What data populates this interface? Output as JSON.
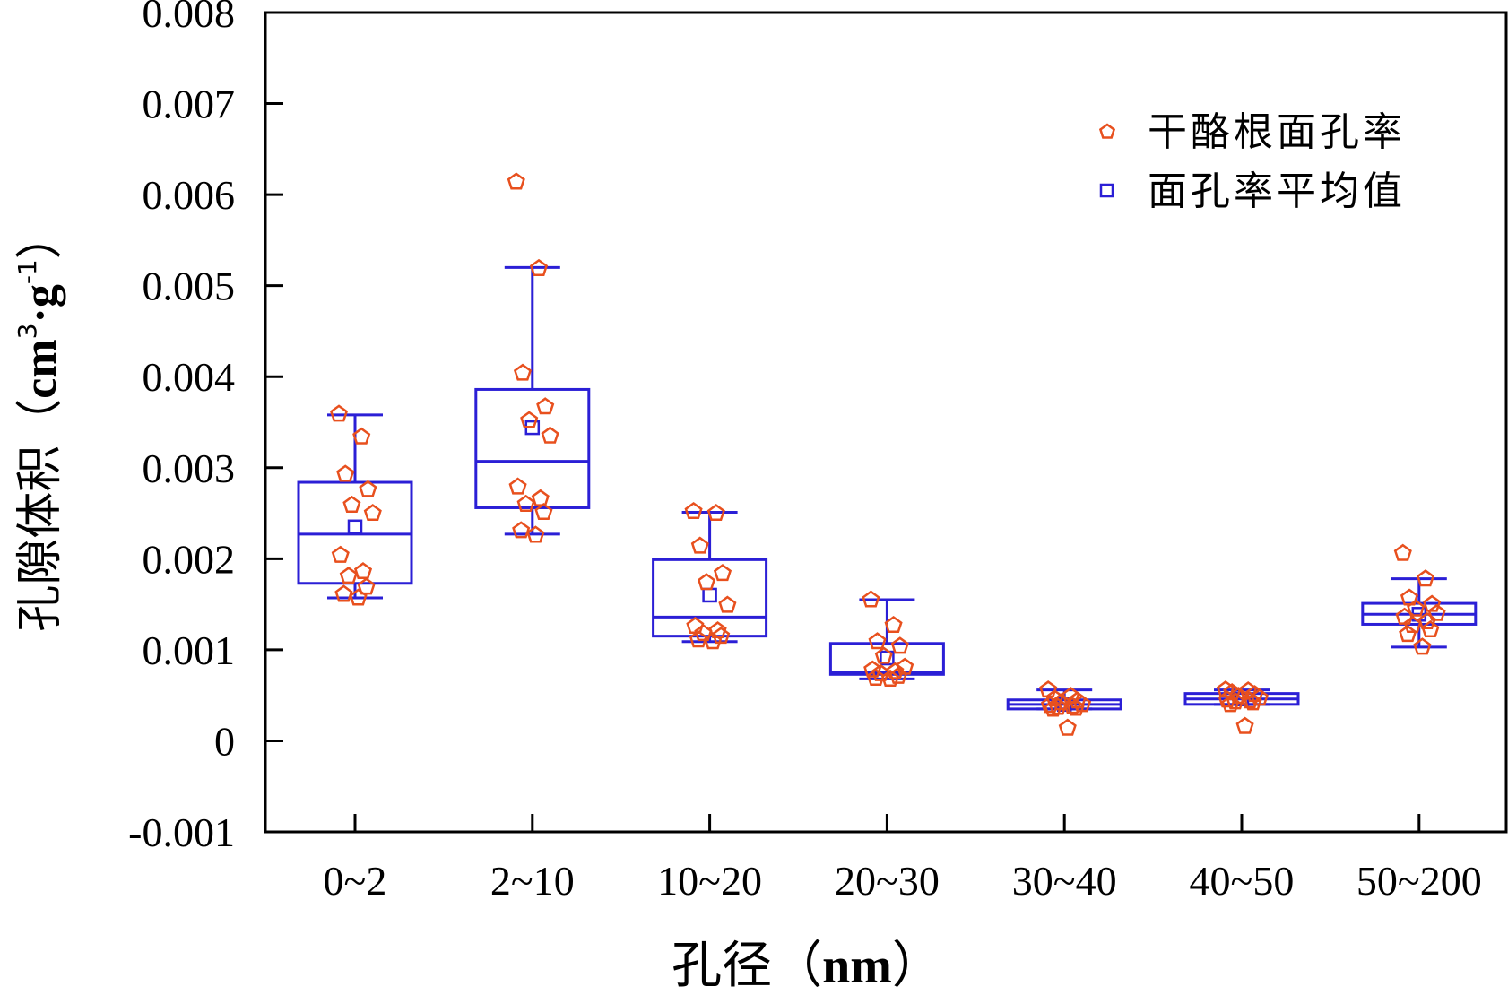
{
  "chart_data": {
    "type": "box",
    "xlabel": "孔径（nm）",
    "ylabel": "孔隙体积（cm3·g-1）",
    "ylabel_parts": {
      "open": "孔隙体积（",
      "unit1": "cm",
      "sup1": "3",
      "mid": "·g",
      "sup2": "-1",
      "close": "）"
    },
    "xlabel_parts": {
      "prefix": "孔径（",
      "unit": "nm",
      "suffix": "）"
    },
    "ylim": [
      -0.001,
      0.008
    ],
    "yticks": [
      -0.001,
      0,
      0.001,
      0.002,
      0.003,
      0.004,
      0.005,
      0.006,
      0.007,
      0.008
    ],
    "ytick_labels": [
      "-0.001",
      "0",
      "0.001",
      "0.002",
      "0.003",
      "0.004",
      "0.005",
      "0.006",
      "0.007",
      "0.008"
    ],
    "categories": [
      "0~2",
      "2~10",
      "10~20",
      "20~30",
      "30~40",
      "40~50",
      "50~200"
    ],
    "legend": {
      "position": "top-right",
      "items": [
        {
          "label": "干酪根面孔率",
          "marker": "pentagon",
          "color": "#e8501e"
        },
        {
          "label": "面孔率平均值",
          "marker": "square",
          "color": "#2b1fd6"
        }
      ]
    },
    "colors": {
      "points": "#e8501e",
      "box": "#2b1fd6",
      "axis": "#000000"
    },
    "boxes": [
      {
        "category": "0~2",
        "whisker_low": 0.00157,
        "q1": 0.00173,
        "median": 0.00227,
        "q3": 0.00284,
        "whisker_high": 0.00358,
        "mean": 0.00235
      },
      {
        "category": "2~10",
        "whisker_low": 0.00227,
        "q1": 0.00256,
        "median": 0.00307,
        "q3": 0.00386,
        "whisker_high": 0.0052,
        "mean": 0.00344
      },
      {
        "category": "10~20",
        "whisker_low": 0.00109,
        "q1": 0.00115,
        "median": 0.00136,
        "q3": 0.00199,
        "whisker_high": 0.00251,
        "mean": 0.0016
      },
      {
        "category": "20~30",
        "whisker_low": 0.00068,
        "q1": 0.00073,
        "median": 0.00075,
        "q3": 0.00107,
        "whisker_high": 0.00155,
        "mean": 0.00091
      },
      {
        "category": "30~40",
        "whisker_low": 0.00035,
        "q1": 0.00035,
        "median": 0.0004,
        "q3": 0.00045,
        "whisker_high": 0.00056,
        "mean": 0.0004
      },
      {
        "category": "40~50",
        "whisker_low": 0.0004,
        "q1": 0.0004,
        "median": 0.00046,
        "q3": 0.00052,
        "whisker_high": 0.00056,
        "mean": 0.00046
      },
      {
        "category": "50~200",
        "whisker_low": 0.00103,
        "q1": 0.00128,
        "median": 0.00139,
        "q3": 0.00151,
        "whisker_high": 0.00178,
        "mean": 0.00139
      }
    ],
    "points": [
      {
        "category": "0~2",
        "values": [
          0.00359,
          0.00334,
          0.00293,
          0.00276,
          0.00259,
          0.0025,
          0.00204,
          0.00186,
          0.00181,
          0.00169,
          0.00161,
          0.00157
        ]
      },
      {
        "category": "2~10",
        "values": [
          0.00614,
          0.00519,
          0.00404,
          0.00367,
          0.00352,
          0.00335,
          0.00279,
          0.00266,
          0.0026,
          0.00251,
          0.00231,
          0.00226
        ]
      },
      {
        "category": "10~20",
        "values": [
          0.00252,
          0.0025,
          0.00214,
          0.00184,
          0.00174,
          0.00149,
          0.00126,
          0.00121,
          0.00118,
          0.00115,
          0.00111,
          0.00109
        ]
      },
      {
        "category": "20~30",
        "values": [
          0.00155,
          0.00127,
          0.00109,
          0.00104,
          0.00093,
          0.00081,
          0.00078,
          0.00076,
          0.00074,
          0.00071,
          0.00069,
          0.00068
        ]
      },
      {
        "category": "30~40",
        "values": [
          0.00056,
          0.00049,
          0.00046,
          0.00044,
          0.00042,
          0.0004,
          0.00039,
          0.00038,
          0.00037,
          0.00036,
          0.00035,
          0.00014
        ]
      },
      {
        "category": "40~50",
        "values": [
          0.00056,
          0.00055,
          0.00053,
          0.00051,
          0.00049,
          0.00047,
          0.00045,
          0.00044,
          0.00043,
          0.00042,
          0.0004,
          0.00016
        ]
      },
      {
        "category": "50~200",
        "values": [
          0.00206,
          0.00178,
          0.00157,
          0.0015,
          0.00145,
          0.0014,
          0.00136,
          0.00131,
          0.00127,
          0.00122,
          0.00117,
          0.00103
        ]
      }
    ]
  }
}
